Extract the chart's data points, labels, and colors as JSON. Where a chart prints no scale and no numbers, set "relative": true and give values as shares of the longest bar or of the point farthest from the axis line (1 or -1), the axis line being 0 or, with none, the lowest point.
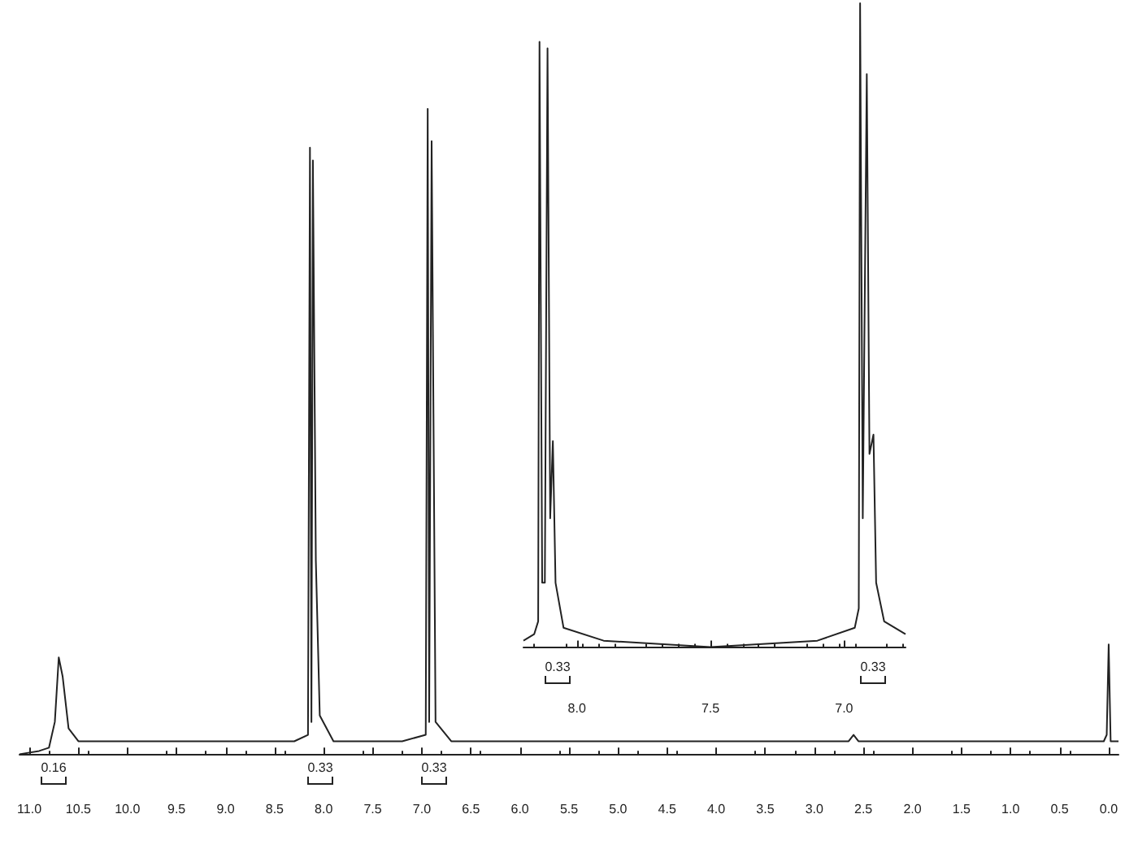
{
  "chart_data": [
    {
      "type": "line",
      "relative": true,
      "color": "#222222",
      "xlim": [
        11.1,
        -0.1
      ],
      "xticks": [
        {
          "value": 11,
          "label": "11.0"
        },
        10.5,
        {
          "value": 10,
          "label": "10.0"
        },
        9.5,
        {
          "value": 9,
          "label": "9.0"
        },
        8.5,
        {
          "value": 8,
          "label": "8.0"
        },
        7.5,
        {
          "value": 7,
          "label": "7.0"
        },
        6.5,
        {
          "value": 6,
          "label": "6.0"
        },
        5.5,
        {
          "value": 5,
          "label": "5.0"
        },
        4.5,
        {
          "value": 4,
          "label": "4.0"
        },
        3.5,
        {
          "value": 3,
          "label": "3.0"
        },
        2.5,
        {
          "value": 2,
          "label": "2.0"
        },
        1.5,
        {
          "value": 1,
          "label": "1.0"
        },
        0.5,
        {
          "value": 0,
          "label": "0.0"
        }
      ],
      "x": [
        11.1,
        10.9,
        10.8,
        10.74,
        10.7,
        10.66,
        10.6,
        10.5,
        9.0,
        8.3,
        8.16,
        8.14,
        8.125,
        8.11,
        8.08,
        8.04,
        7.9,
        7.2,
        6.96,
        6.94,
        6.925,
        6.9,
        6.86,
        6.7,
        5.0,
        2.65,
        2.6,
        2.55,
        0.05,
        0.02,
        0,
        -0.02,
        -0.1
      ],
      "values": [
        0,
        0.005,
        0.01,
        0.05,
        0.15,
        0.12,
        0.04,
        0.02,
        0.02,
        0.02,
        0.03,
        0.94,
        0.05,
        0.92,
        0.3,
        0.06,
        0.02,
        0.02,
        0.03,
        1,
        0.05,
        0.95,
        0.05,
        0.02,
        0.02,
        0.02,
        0.03,
        0.02,
        0.02,
        0.03,
        0.17,
        0.02,
        0.02
      ],
      "marker": "none",
      "line_style": "solid",
      "grid": false,
      "annotations": [
        "0.16",
        "0.33",
        "0.33"
      ]
    },
    {
      "type": "line",
      "relative": true,
      "color": "#222222",
      "xlim": [
        8.2,
        6.77
      ],
      "xticks": [
        {
          "value": 8,
          "label": "8.0"
        },
        7.5,
        {
          "value": 7,
          "label": "7.0"
        }
      ],
      "x": [
        8.2,
        8.16,
        8.145,
        8.14,
        8.13,
        8.12,
        8.11,
        8.1,
        8.09,
        8.08,
        8.05,
        7.9,
        7.5,
        7.1,
        6.96,
        6.945,
        6.94,
        6.93,
        6.915,
        6.905,
        6.89,
        6.88,
        6.85,
        6.77
      ],
      "values": [
        0.01,
        0.02,
        0.04,
        0.94,
        0.1,
        0.1,
        0.93,
        0.2,
        0.32,
        0.1,
        0.03,
        0.01,
        0,
        0.01,
        0.03,
        0.06,
        1,
        0.2,
        0.89,
        0.3,
        0.33,
        0.1,
        0.04,
        0.02
      ],
      "marker": "none",
      "line_style": "solid",
      "grid": false,
      "annotations": [
        "0.33",
        "0.33"
      ]
    }
  ]
}
